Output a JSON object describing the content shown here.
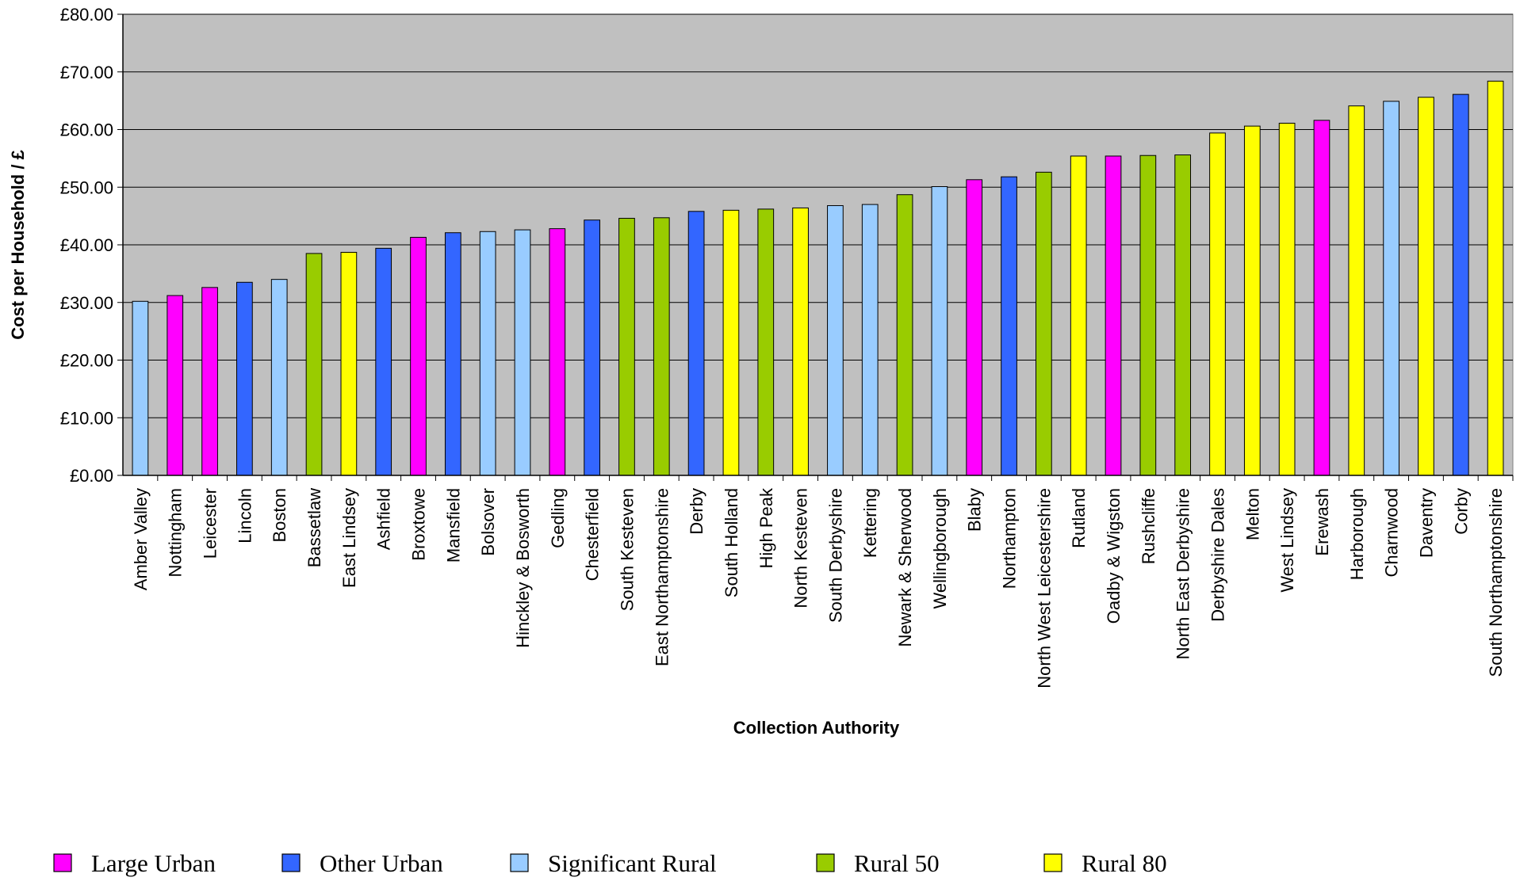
{
  "chart_data": {
    "type": "bar",
    "xlabel": "Collection Authority",
    "ylabel": "Cost per Household / £",
    "ylim": [
      0,
      80
    ],
    "yticks": [
      0,
      10,
      20,
      30,
      40,
      50,
      60,
      70,
      80
    ],
    "ytick_labels": [
      "£0.00",
      "£10.00",
      "£20.00",
      "£30.00",
      "£40.00",
      "£50.00",
      "£60.00",
      "£70.00",
      "£80.00"
    ],
    "grid": true,
    "plot_background": "#c0c0c0",
    "legend_position": "bottom",
    "groups": [
      {
        "name": "Large Urban",
        "color": "#ff00ff"
      },
      {
        "name": "Other Urban",
        "color": "#3366ff"
      },
      {
        "name": "Significant Rural",
        "color": "#99ccff"
      },
      {
        "name": "Rural 50",
        "color": "#99cc00"
      },
      {
        "name": "Rural 80",
        "color": "#ffff00"
      }
    ],
    "categories": [
      "Amber Valley",
      "Nottingham",
      "Leicester",
      "Lincoln",
      "Boston",
      "Bassetlaw",
      "East Lindsey",
      "Ashfield",
      "Broxtowe",
      "Mansfield",
      "Bolsover",
      "Hinckley & Bosworth",
      "Gedling",
      "Chesterfield",
      "South Kesteven",
      "East Northamptonshire",
      "Derby",
      "South Holland",
      "High Peak",
      "North Kesteven",
      "South Derbyshire",
      "Kettering",
      "Newark & Sherwood",
      "Wellingborough",
      "Blaby",
      "Northampton",
      "North West Leicestershire",
      "Rutland",
      "Oadby & Wigston",
      "Rushcliffe",
      "North East Derbyshire",
      "Derbyshire Dales",
      "Melton",
      "West Lindsey",
      "Erewash",
      "Harborough",
      "Charnwood",
      "Daventry",
      "Corby",
      "South Northamptonshire"
    ],
    "values": [
      30.2,
      31.2,
      32.6,
      33.5,
      34.0,
      38.5,
      38.7,
      39.4,
      41.3,
      42.1,
      42.3,
      42.6,
      42.8,
      44.3,
      44.6,
      44.7,
      45.8,
      46.0,
      46.2,
      46.4,
      46.8,
      47.0,
      48.7,
      50.1,
      51.3,
      51.8,
      52.6,
      55.4,
      55.4,
      55.5,
      55.6,
      59.4,
      60.6,
      61.1,
      61.6,
      64.1,
      64.9,
      65.6,
      66.1,
      68.4
    ],
    "category_groups": [
      "Significant Rural",
      "Large Urban",
      "Large Urban",
      "Other Urban",
      "Significant Rural",
      "Rural 50",
      "Rural 80",
      "Other Urban",
      "Large Urban",
      "Other Urban",
      "Significant Rural",
      "Significant Rural",
      "Large Urban",
      "Other Urban",
      "Rural 50",
      "Rural 50",
      "Other Urban",
      "Rural 80",
      "Rural 50",
      "Rural 80",
      "Significant Rural",
      "Significant Rural",
      "Rural 50",
      "Significant Rural",
      "Large Urban",
      "Other Urban",
      "Rural 50",
      "Rural 80",
      "Large Urban",
      "Rural 50",
      "Rural 50",
      "Rural 80",
      "Rural 80",
      "Rural 80",
      "Large Urban",
      "Rural 80",
      "Significant Rural",
      "Rural 80",
      "Other Urban",
      "Rural 80"
    ]
  }
}
